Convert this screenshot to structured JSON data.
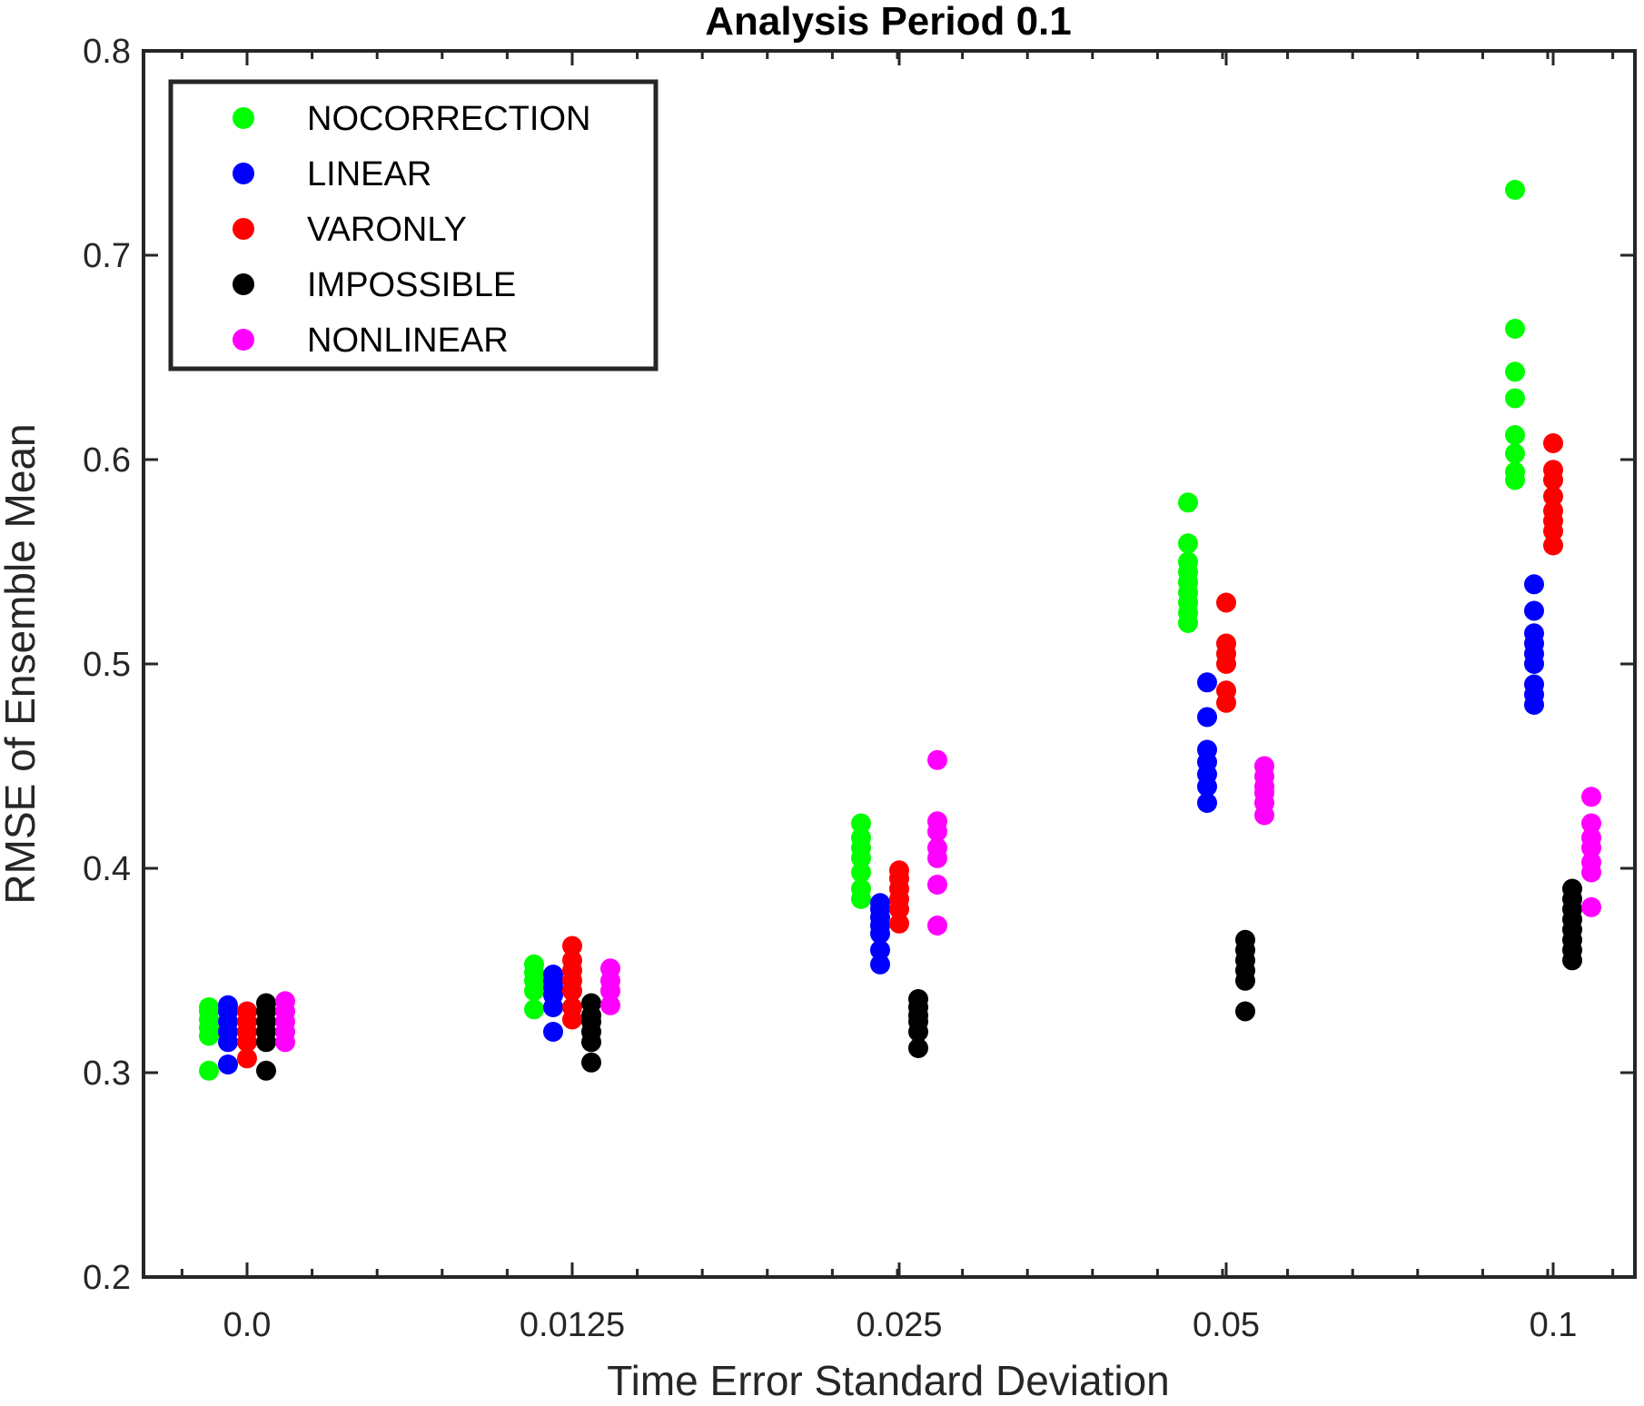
{
  "chart_data": {
    "type": "scatter",
    "title": "Analysis Period 0.1",
    "xlabel": "Time Error Standard Deviation",
    "ylabel": "RMSE of Ensemble Mean",
    "categories": [
      "0.0",
      "0.0125",
      "0.025",
      "0.05",
      "0.1"
    ],
    "ylim": [
      0.2,
      0.8
    ],
    "yticks": [
      "0.2",
      "0.3",
      "0.4",
      "0.5",
      "0.6",
      "0.7",
      "0.8"
    ],
    "grid": false,
    "legend_position": "top-left",
    "series": [
      {
        "name": "NOCORRECTION",
        "color": "#00ff00",
        "values": [
          [
            0.301,
            0.318,
            0.322,
            0.326,
            0.33,
            0.332
          ],
          [
            0.331,
            0.34,
            0.345,
            0.349,
            0.353
          ],
          [
            0.385,
            0.39,
            0.398,
            0.405,
            0.41,
            0.415,
            0.422
          ],
          [
            0.52,
            0.525,
            0.53,
            0.535,
            0.54,
            0.545,
            0.55,
            0.559,
            0.579
          ],
          [
            0.59,
            0.594,
            0.603,
            0.612,
            0.63,
            0.643,
            0.664,
            0.732
          ]
        ]
      },
      {
        "name": "LINEAR",
        "color": "#0000ff",
        "values": [
          [
            0.304,
            0.315,
            0.32,
            0.325,
            0.33,
            0.333
          ],
          [
            0.32,
            0.332,
            0.338,
            0.342,
            0.345,
            0.348
          ],
          [
            0.353,
            0.36,
            0.368,
            0.372,
            0.376,
            0.38,
            0.383
          ],
          [
            0.432,
            0.44,
            0.446,
            0.452,
            0.458,
            0.474,
            0.491
          ],
          [
            0.48,
            0.485,
            0.49,
            0.5,
            0.505,
            0.51,
            0.515,
            0.526,
            0.539
          ]
        ]
      },
      {
        "name": "VARONLY",
        "color": "#ff0000",
        "values": [
          [
            0.307,
            0.315,
            0.32,
            0.325,
            0.33
          ],
          [
            0.326,
            0.332,
            0.34,
            0.345,
            0.35,
            0.355,
            0.362
          ],
          [
            0.373,
            0.38,
            0.385,
            0.39,
            0.395,
            0.399
          ],
          [
            0.481,
            0.487,
            0.5,
            0.505,
            0.51,
            0.53
          ],
          [
            0.558,
            0.565,
            0.57,
            0.575,
            0.582,
            0.59,
            0.595,
            0.608
          ]
        ]
      },
      {
        "name": "IMPOSSIBLE",
        "color": "#000000",
        "values": [
          [
            0.301,
            0.315,
            0.32,
            0.325,
            0.33,
            0.334
          ],
          [
            0.305,
            0.315,
            0.32,
            0.325,
            0.328,
            0.334
          ],
          [
            0.312,
            0.32,
            0.325,
            0.328,
            0.332,
            0.336
          ],
          [
            0.33,
            0.345,
            0.35,
            0.355,
            0.36,
            0.365
          ],
          [
            0.355,
            0.36,
            0.365,
            0.37,
            0.375,
            0.38,
            0.385,
            0.39
          ]
        ]
      },
      {
        "name": "NONLINEAR",
        "color": "#ff00ff",
        "values": [
          [
            0.315,
            0.32,
            0.325,
            0.33,
            0.335
          ],
          [
            0.333,
            0.34,
            0.345,
            0.351
          ],
          [
            0.372,
            0.392,
            0.405,
            0.41,
            0.418,
            0.423,
            0.453
          ],
          [
            0.426,
            0.432,
            0.437,
            0.44,
            0.445,
            0.45
          ],
          [
            0.381,
            0.398,
            0.403,
            0.41,
            0.415,
            0.422,
            0.435
          ]
        ]
      }
    ]
  }
}
